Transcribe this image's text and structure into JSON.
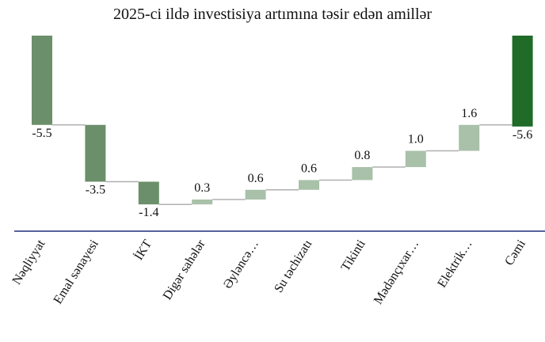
{
  "chart_data": {
    "type": "waterfall",
    "title": "2025-ci ildə investisiya artımına təsir edən amillər",
    "categories": [
      "Nəqliyyat",
      "Emal sənayesi",
      "İKT",
      "Digər sahələr",
      "Əyləncə…",
      "Su təchizatı",
      "Tikinti",
      "Mədənçıxar…",
      "Elektrik…",
      "Cəmi"
    ],
    "values": [
      -5.5,
      -3.5,
      -1.4,
      0.3,
      0.6,
      0.6,
      0.8,
      1.0,
      1.6,
      -5.6
    ],
    "value_labels": [
      "-5.5",
      "-3.5",
      "-1.4",
      "0.3",
      "0.6",
      "0.6",
      "0.8",
      "1.0",
      "1.6",
      "-5.6"
    ],
    "measure": [
      "relative",
      "relative",
      "relative",
      "relative",
      "relative",
      "relative",
      "relative",
      "relative",
      "relative",
      "total"
    ],
    "decrease_color": "#6b8f6a",
    "increase_color": "#a9c0a9",
    "total_color": "#1f6b27",
    "connector_color": "#b0b0b0",
    "axis_color": "#1f2f7a",
    "ylim": [
      -12,
      0
    ]
  }
}
